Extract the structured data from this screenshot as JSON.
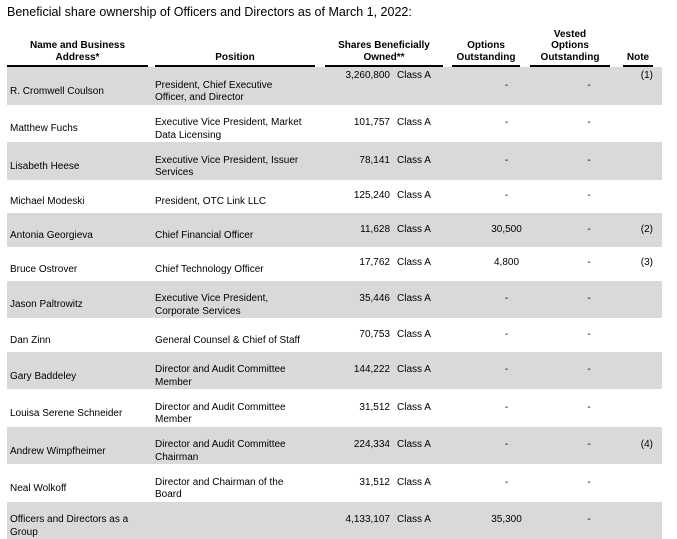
{
  "title": "Beneficial share ownership of Officers and Directors as of March 1, 2022:",
  "table": {
    "headers": {
      "name": "Name and Business\nAddress*",
      "position": "Position",
      "shares": "Shares Beneficially\nOwned**",
      "options": "Options\nOutstanding",
      "vested": "Vested\nOptions\nOutstanding",
      "note": "Note"
    },
    "rows": [
      {
        "name": "R. Cromwell Coulson",
        "position": "President, Chief Executive\nOfficer, and Director",
        "shares": "3,260,800",
        "share_class": "Class A",
        "options": "-",
        "vested": "-",
        "note": "(1)"
      },
      {
        "name": "Matthew Fuchs",
        "position": "Executive Vice President, Market\nData Licensing",
        "shares": "101,757",
        "share_class": "Class A",
        "options": "-",
        "vested": "-",
        "note": ""
      },
      {
        "name": "Lisabeth Heese",
        "position": "Executive Vice President, Issuer\nServices",
        "shares": "78,141",
        "share_class": "Class A",
        "options": "-",
        "vested": "-",
        "note": ""
      },
      {
        "name": "Michael Modeski",
        "position": "President, OTC Link LLC",
        "shares": "125,240",
        "share_class": "Class A",
        "options": "-",
        "vested": "-",
        "note": ""
      },
      {
        "name": "Antonia Georgieva",
        "position": "Chief Financial Officer",
        "shares": "11,628",
        "share_class": "Class A",
        "options": "30,500",
        "vested": "-",
        "note": "(2)"
      },
      {
        "name": "Bruce Ostrover",
        "position": "Chief Technology Officer",
        "shares": "17,762",
        "share_class": "Class A",
        "options": "4,800",
        "vested": "-",
        "note": "(3)"
      },
      {
        "name": "Jason Paltrowitz",
        "position": "Executive Vice President,\nCorporate Services",
        "shares": "35,446",
        "share_class": "Class A",
        "options": "-",
        "vested": "-",
        "note": ""
      },
      {
        "name": "Dan Zinn",
        "position": "General Counsel & Chief of Staff",
        "shares": "70,753",
        "share_class": "Class A",
        "options": "-",
        "vested": "-",
        "note": ""
      },
      {
        "name": "Gary Baddeley",
        "position": "Director and Audit Committee\nMember",
        "shares": "144,222",
        "share_class": "Class A",
        "options": "-",
        "vested": "-",
        "note": ""
      },
      {
        "name": "Louisa Serene Schneider",
        "position": "Director and Audit Committee\nMember",
        "shares": "31,512",
        "share_class": "Class A",
        "options": "-",
        "vested": "-",
        "note": ""
      },
      {
        "name": "Andrew Wimpfheimer",
        "position": "Director and Audit Committee\nChairman",
        "shares": "224,334",
        "share_class": "Class A",
        "options": "-",
        "vested": "-",
        "note": "(4)"
      },
      {
        "name": "Neal Wolkoff",
        "position": "Director and Chairman of the\nBoard",
        "shares": "31,512",
        "share_class": "Class A",
        "options": "-",
        "vested": "-",
        "note": ""
      },
      {
        "name": "Officers and Directors as a\nGroup",
        "position": "",
        "shares": "4,133,107",
        "share_class": "Class A",
        "options": "35,300",
        "vested": "-",
        "note": ""
      }
    ]
  },
  "colors": {
    "row_alt_background": "#d9d9d9",
    "text": "#000000",
    "header_rule": "#000000"
  }
}
